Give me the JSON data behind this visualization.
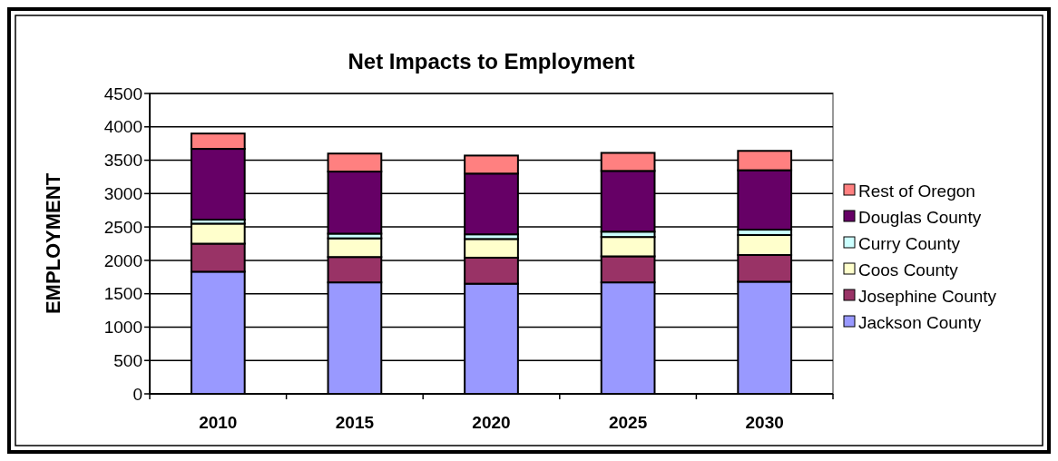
{
  "chart_data": {
    "type": "bar",
    "title": "Net Impacts to Employment",
    "ylabel": "EMPLOYMENT",
    "categories": [
      "2010",
      "2015",
      "2020",
      "2025",
      "2030"
    ],
    "stacked": true,
    "ylim": [
      0,
      4500
    ],
    "yticks": [
      0,
      500,
      1000,
      1500,
      2000,
      2500,
      3000,
      3500,
      4000,
      4500
    ],
    "grid": "y",
    "legend": "right",
    "series": [
      {
        "name": "Jackson County",
        "color": "#9999ff",
        "values": [
          1830,
          1670,
          1650,
          1670,
          1680
        ]
      },
      {
        "name": "Josephine County",
        "color": "#993366",
        "values": [
          420,
          380,
          390,
          390,
          400
        ]
      },
      {
        "name": "Coos County",
        "color": "#ffffcc",
        "values": [
          300,
          280,
          280,
          290,
          300
        ]
      },
      {
        "name": "Curry County",
        "color": "#ccffff",
        "values": [
          60,
          70,
          70,
          80,
          80
        ]
      },
      {
        "name": "Douglas County",
        "color": "#660066",
        "values": [
          1060,
          930,
          910,
          910,
          890
        ]
      },
      {
        "name": "Rest of Oregon",
        "color": "#ff8080",
        "values": [
          230,
          270,
          270,
          270,
          290
        ]
      }
    ]
  }
}
